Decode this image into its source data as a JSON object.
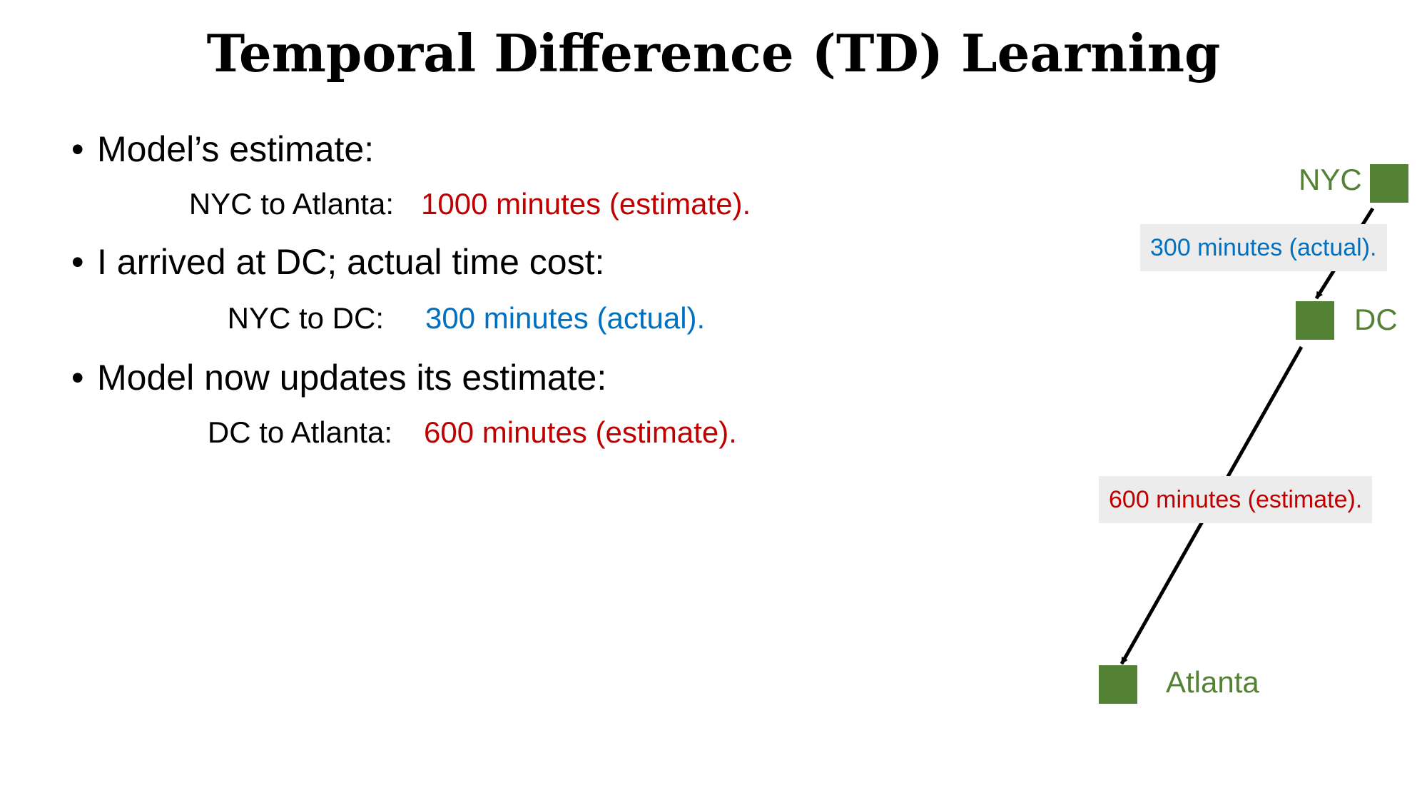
{
  "title": "Temporal Difference (TD) Learning",
  "bullets": [
    {
      "text": "Model’s estimate:",
      "sub_label": "NYC to Atlanta:",
      "sub_value": "1000 minutes (estimate)."
    },
    {
      "text": "I arrived at DC; actual time cost:",
      "sub_label": "NYC to DC:",
      "sub_value": "300 minutes (actual)."
    },
    {
      "text": "Model now updates its estimate:",
      "sub_label": "DC to Atlanta:",
      "sub_value": "600 minutes (estimate)."
    }
  ],
  "diagram": {
    "nodes": {
      "nyc": "NYC",
      "dc": "DC",
      "atlanta": "Atlanta"
    },
    "edges": {
      "nyc_dc": "300 minutes (actual).",
      "dc_atlanta": "600 minutes (estimate)."
    }
  },
  "colors": {
    "estimate": "#c00000",
    "actual": "#0070c0",
    "node": "#548235",
    "label_bg": "#ececec"
  }
}
